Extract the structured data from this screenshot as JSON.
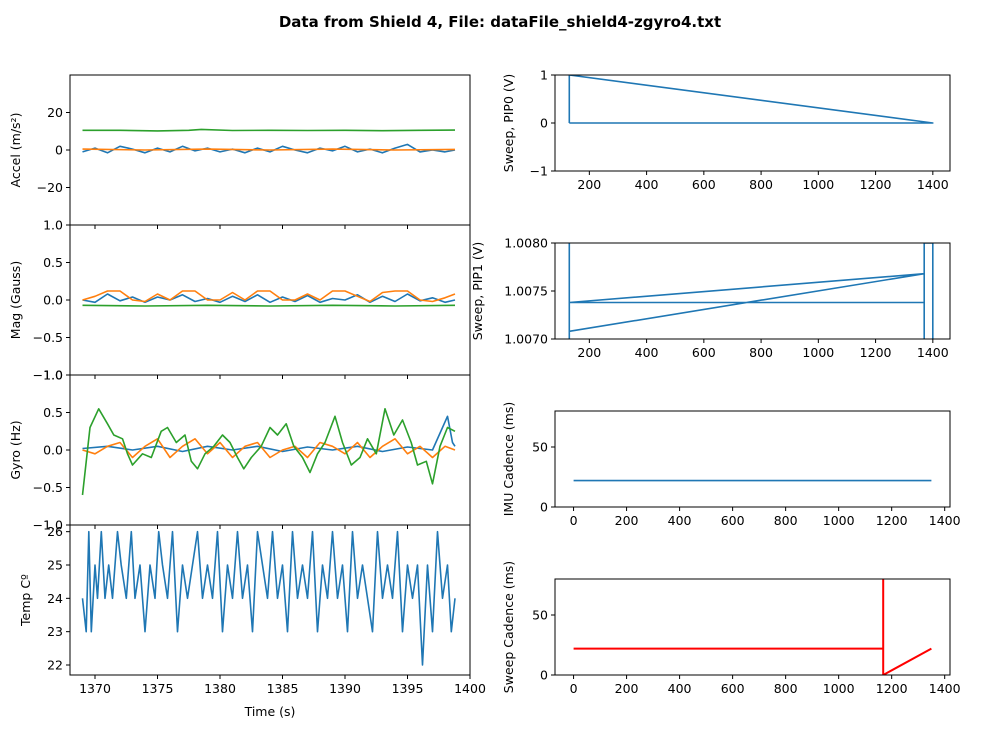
{
  "figure": {
    "title": "Data from Shield 4, File: dataFile_shield4-zgyro4.txt"
  },
  "colors": {
    "c1": "#1f77b4",
    "c2": "#ff7f0e",
    "c3": "#2ca02c",
    "red": "#ff0000",
    "blue": "#0000ff",
    "black": "#000000"
  },
  "chart_data": [
    {
      "id": "accel",
      "type": "line",
      "xlabel": "",
      "ylabel": "Accel (m/s²)",
      "xlim": [
        1368,
        1400
      ],
      "ylim": [
        -40,
        40
      ],
      "yticks": [
        -20,
        0,
        20
      ],
      "yticklabels": [
        "−20",
        "0",
        "20"
      ],
      "series": [
        {
          "color": "c1",
          "x": [
            1369,
            1370,
            1371,
            1372,
            1373,
            1374,
            1375,
            1376,
            1377,
            1378,
            1379,
            1380,
            1381,
            1382,
            1383,
            1384,
            1385,
            1386,
            1387,
            1388,
            1389,
            1390,
            1391,
            1392,
            1393,
            1394,
            1395,
            1396,
            1397,
            1398,
            1398.8
          ],
          "y": [
            -1,
            1,
            -1.5,
            2,
            0.5,
            -1.5,
            1,
            -1,
            2,
            -0.5,
            1,
            -1,
            0.5,
            -1.5,
            1,
            -1,
            2,
            0,
            -1.5,
            1,
            -0.5,
            2,
            -1,
            0.5,
            -1.5,
            1,
            3,
            -1,
            0,
            -1,
            0
          ]
        },
        {
          "color": "c2",
          "x": [
            1369,
            1374,
            1379,
            1384,
            1389,
            1394,
            1398.8
          ],
          "y": [
            0.5,
            0,
            0.5,
            0,
            0.5,
            0,
            0.3
          ]
        },
        {
          "color": "c3",
          "x": [
            1369,
            1372,
            1375,
            1377.5,
            1378.5,
            1381,
            1384,
            1387,
            1390,
            1393,
            1396,
            1398.8
          ],
          "y": [
            10.5,
            10.5,
            10.2,
            10.5,
            11,
            10.4,
            10.5,
            10.4,
            10.5,
            10.3,
            10.5,
            10.6
          ]
        }
      ]
    },
    {
      "id": "mag",
      "type": "line",
      "xlabel": "",
      "ylabel": "Mag (Gauss)",
      "xlim": [
        1368,
        1400
      ],
      "ylim": [
        -1,
        1
      ],
      "yticks": [
        -1,
        -0.5,
        0,
        0.5,
        1
      ],
      "yticklabels": [
        "−1.0",
        "−0.5",
        "0.0",
        "0.5",
        "1.0"
      ],
      "series": [
        {
          "color": "c1",
          "x": [
            1369,
            1370,
            1371,
            1372,
            1373,
            1374,
            1375,
            1376,
            1377,
            1378,
            1379,
            1380,
            1381,
            1382,
            1383,
            1384,
            1385,
            1386,
            1387,
            1388,
            1389,
            1390,
            1391,
            1392,
            1393,
            1394,
            1395,
            1396,
            1397,
            1398,
            1398.8
          ],
          "y": [
            0,
            -0.03,
            0.08,
            -0.01,
            0.04,
            -0.03,
            0.04,
            0,
            0.07,
            -0.02,
            0.02,
            -0.03,
            0.05,
            -0.02,
            0.07,
            -0.03,
            0.04,
            -0.02,
            0.06,
            -0.03,
            0.02,
            0,
            0.07,
            -0.03,
            0.05,
            -0.02,
            0.08,
            -0.01,
            0.03,
            -0.03,
            0
          ]
        },
        {
          "color": "c2",
          "x": [
            1369,
            1370,
            1371,
            1372,
            1373,
            1374,
            1375,
            1376,
            1377,
            1378,
            1379,
            1380,
            1381,
            1382,
            1383,
            1384,
            1385,
            1386,
            1387,
            1388,
            1389,
            1390,
            1391,
            1392,
            1393,
            1394,
            1395,
            1396,
            1397,
            1398,
            1398.8
          ],
          "y": [
            0,
            0.05,
            0.12,
            0.12,
            0,
            -0.02,
            0.08,
            0,
            0.12,
            0.12,
            0,
            0,
            0.1,
            0,
            0.12,
            0.12,
            0,
            0,
            0.08,
            0,
            0.12,
            0.12,
            0.05,
            -0.02,
            0.1,
            0.12,
            0.12,
            0,
            -0.02,
            0.03,
            0.08
          ]
        },
        {
          "color": "c3",
          "x": [
            1369,
            1374,
            1379,
            1384,
            1389,
            1394,
            1398.8
          ],
          "y": [
            -0.07,
            -0.08,
            -0.07,
            -0.08,
            -0.07,
            -0.08,
            -0.07
          ]
        }
      ]
    },
    {
      "id": "gyro",
      "type": "line",
      "xlabel": "",
      "ylabel": "Gyro (Hz)",
      "xlim": [
        1368,
        1400
      ],
      "ylim": [
        -1,
        1
      ],
      "yticks": [
        -1,
        -0.5,
        0,
        0.5,
        1
      ],
      "yticklabels": [
        "−1.0",
        "−0.5",
        "0.0",
        "0.5",
        "1.0"
      ],
      "series": [
        {
          "color": "c1",
          "x": [
            1369,
            1371,
            1373,
            1375,
            1377,
            1379,
            1381,
            1383,
            1385,
            1387,
            1389,
            1391,
            1393,
            1395,
            1397,
            1398.2,
            1398.6,
            1398.8
          ],
          "y": [
            0.02,
            0.05,
            0,
            0.05,
            -0.02,
            0.05,
            0,
            0.05,
            -0.02,
            0.04,
            0,
            0.05,
            -0.02,
            0.04,
            0,
            0.45,
            0.1,
            0.05
          ]
        },
        {
          "color": "c2",
          "x": [
            1369,
            1370,
            1371,
            1372,
            1373,
            1374,
            1375,
            1376,
            1377,
            1378,
            1379,
            1380,
            1381,
            1382,
            1383,
            1384,
            1385,
            1386,
            1387,
            1388,
            1389,
            1390,
            1391,
            1392,
            1393,
            1394,
            1395,
            1396,
            1397,
            1398,
            1398.8
          ],
          "y": [
            0,
            -0.05,
            0.05,
            0.1,
            -0.1,
            0.05,
            0.15,
            -0.1,
            0.05,
            0.15,
            -0.05,
            0.1,
            -0.1,
            0.05,
            0.1,
            -0.1,
            0,
            0.05,
            -0.1,
            0.1,
            0.05,
            -0.05,
            0.1,
            -0.1,
            0.05,
            0.15,
            -0.05,
            0.05,
            -0.1,
            0.05,
            0
          ]
        },
        {
          "color": "c3",
          "x": [
            1369,
            1369.6,
            1370.3,
            1371,
            1371.5,
            1372.2,
            1372.6,
            1373,
            1373.8,
            1374.5,
            1375.3,
            1375.8,
            1376.5,
            1377.2,
            1377.7,
            1378.2,
            1378.8,
            1379.5,
            1380.2,
            1380.8,
            1381.4,
            1381.9,
            1382.5,
            1383.3,
            1384,
            1384.6,
            1385.3,
            1385.9,
            1386.6,
            1387.2,
            1387.8,
            1388.4,
            1389.2,
            1389.8,
            1390.5,
            1391.2,
            1391.8,
            1392.5,
            1393.2,
            1393.9,
            1394.6,
            1395.3,
            1395.8,
            1396.5,
            1397,
            1397.6,
            1398.2,
            1398.8
          ],
          "y": [
            -0.6,
            0.3,
            0.55,
            0.35,
            0.2,
            0.15,
            -0.05,
            -0.2,
            -0.05,
            -0.1,
            0.25,
            0.3,
            0.1,
            0.2,
            -0.15,
            -0.25,
            -0.05,
            0.05,
            0.2,
            0.1,
            -0.1,
            -0.25,
            -0.1,
            0.05,
            0.3,
            0.2,
            0.35,
            0.05,
            -0.1,
            -0.3,
            -0.05,
            0.1,
            0.45,
            0.1,
            -0.2,
            -0.1,
            0.15,
            -0.05,
            0.55,
            0.2,
            0.4,
            0.1,
            -0.2,
            -0.15,
            -0.45,
            0.05,
            0.3,
            0.25
          ]
        }
      ]
    },
    {
      "id": "temp",
      "type": "line",
      "xlabel": "Time (s)",
      "ylabel": "Temp Cº",
      "xlim": [
        1368,
        1400
      ],
      "ylim": [
        21.7,
        26.2
      ],
      "yticks": [
        22,
        23,
        24,
        25,
        26
      ],
      "yticklabels": [
        "22",
        "23",
        "24",
        "25",
        "26"
      ],
      "xticks": [
        1370,
        1375,
        1380,
        1385,
        1390,
        1395,
        1400
      ],
      "xticklabels": [
        "1370",
        "1375",
        "1380",
        "1385",
        "1390",
        "1395",
        "1400"
      ],
      "series": [
        {
          "color": "c1",
          "x": [
            1369,
            1369.3,
            1369.5,
            1369.7,
            1370,
            1370.2,
            1370.5,
            1370.8,
            1371.1,
            1371.4,
            1371.8,
            1372.1,
            1372.5,
            1372.9,
            1373.2,
            1373.6,
            1374,
            1374.4,
            1374.8,
            1375.1,
            1375.4,
            1375.8,
            1376.2,
            1376.6,
            1377,
            1377.4,
            1377.8,
            1378.2,
            1378.6,
            1379,
            1379.4,
            1379.8,
            1380.2,
            1380.6,
            1381,
            1381.4,
            1381.8,
            1382.2,
            1382.6,
            1383,
            1383.4,
            1383.8,
            1384.2,
            1384.6,
            1385,
            1385.4,
            1385.8,
            1386.2,
            1386.6,
            1387,
            1387.4,
            1387.8,
            1388.2,
            1388.6,
            1389,
            1389.4,
            1389.8,
            1390.2,
            1390.6,
            1391,
            1391.4,
            1391.8,
            1392.2,
            1392.6,
            1393,
            1393.4,
            1393.8,
            1394.2,
            1394.6,
            1395,
            1395.4,
            1395.8,
            1396.2,
            1396.6,
            1397,
            1397.4,
            1397.8,
            1398.2,
            1398.5,
            1398.8
          ],
          "y": [
            24,
            23,
            26,
            23,
            25,
            24,
            26,
            24,
            25,
            24,
            26,
            25,
            24,
            26,
            24,
            25,
            23,
            25,
            24,
            26,
            25,
            24,
            26,
            23,
            25,
            24,
            25,
            26,
            24,
            25,
            24,
            26,
            23,
            25,
            24,
            26,
            24,
            25,
            23,
            26,
            25,
            24,
            26,
            24,
            25,
            23,
            26,
            24,
            25,
            24,
            26,
            23,
            25,
            24,
            26,
            24,
            25,
            23,
            26,
            24,
            25,
            24,
            23,
            26,
            24,
            25,
            24,
            26,
            23,
            25,
            24,
            25,
            22,
            25,
            23,
            26,
            24,
            25,
            23,
            24
          ]
        }
      ]
    },
    {
      "id": "pip0",
      "type": "line",
      "xlabel": "",
      "ylabel": "Sweep, PIP0 (V)",
      "xlim": [
        80,
        1460
      ],
      "ylim": [
        -1,
        1
      ],
      "yticks": [
        -1,
        0,
        1
      ],
      "yticklabels": [
        "−1",
        "0",
        "1"
      ],
      "xticks": [
        200,
        400,
        600,
        800,
        1000,
        1200,
        1400
      ],
      "xticklabels": [
        "200",
        "400",
        "600",
        "800",
        "1000",
        "1200",
        "1400"
      ],
      "series": [
        {
          "color": "c1",
          "x": [
            130,
            130,
            1400,
            130
          ],
          "y": [
            0,
            1,
            0,
            0
          ]
        }
      ]
    },
    {
      "id": "pip1",
      "type": "line",
      "xlabel": "",
      "ylabel": "Sweep, PIP1 (V)",
      "xlim": [
        80,
        1460
      ],
      "ylim": [
        1.007,
        1.008
      ],
      "yticks": [
        1.007,
        1.0075,
        1.008
      ],
      "yticklabels": [
        "1.0070",
        "1.0075",
        "1.0080"
      ],
      "xticks": [
        200,
        400,
        600,
        800,
        1000,
        1200,
        1400
      ],
      "xticklabels": [
        "200",
        "400",
        "600",
        "800",
        "1000",
        "1200",
        "1400"
      ],
      "series": [
        {
          "color": "c1",
          "x": [
            130,
            130,
            130,
            1370,
            130,
            1370,
            1370,
            130,
            1370,
            1370,
            1370,
            1400,
            1400
          ],
          "y": [
            1.008,
            1.007,
            1.00738,
            1.00768,
            1.00708,
            1.00768,
            1.00738,
            1.00738,
            1.00738,
            1.007,
            1.008,
            1.008,
            1.007
          ]
        }
      ]
    },
    {
      "id": "imu",
      "type": "line",
      "xlabel": "",
      "ylabel": "IMU Cadence (ms)",
      "ylabel_color": "blue",
      "xlim": [
        -70,
        1420
      ],
      "ylim": [
        0,
        80
      ],
      "yticks": [
        0,
        50
      ],
      "yticklabels": [
        "0",
        "50"
      ],
      "xticks": [
        0,
        200,
        400,
        600,
        800,
        1000,
        1200,
        1400
      ],
      "xticklabels": [
        "0",
        "200",
        "400",
        "600",
        "800",
        "1000",
        "1200",
        "1400"
      ],
      "series": [
        {
          "color": "c1",
          "x": [
            0,
            1350
          ],
          "y": [
            22,
            22
          ]
        }
      ]
    },
    {
      "id": "sweep",
      "type": "line",
      "xlabel": "",
      "ylabel": "Sweep Cadence (ms)",
      "ylabel_color": "red",
      "xlim": [
        -70,
        1420
      ],
      "ylim": [
        0,
        80
      ],
      "yticks": [
        0,
        50
      ],
      "yticklabels": [
        "0",
        "50"
      ],
      "xticks": [
        0,
        200,
        400,
        600,
        800,
        1000,
        1200,
        1400
      ],
      "xticklabels": [
        "0",
        "200",
        "400",
        "600",
        "800",
        "1000",
        "1200",
        "1400"
      ],
      "series": [
        {
          "color": "red",
          "x": [
            0,
            1168,
            1168,
            1168,
            1350
          ],
          "y": [
            22,
            22,
            80,
            0,
            22
          ]
        }
      ]
    }
  ]
}
